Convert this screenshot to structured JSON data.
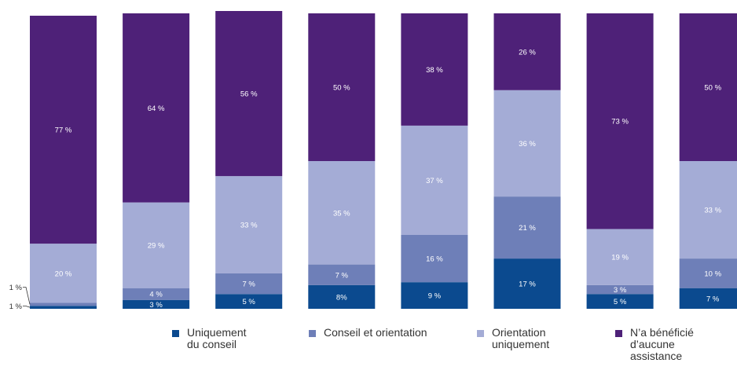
{
  "chart_data": {
    "type": "bar",
    "stacked": true,
    "normalized_to_percent": true,
    "grid": false,
    "legend_position": "bottom",
    "categories": [
      "",
      "",
      "",
      "",
      "",
      "",
      "",
      ""
    ],
    "series": [
      {
        "name": "Uniquement\ndu conseil",
        "color": "#0b4a8f",
        "values": [
          1,
          3,
          5,
          8,
          9,
          17,
          5,
          7
        ],
        "labels": [
          "1 %",
          "3 %",
          "5 %",
          "8%",
          "9 %",
          "17 %",
          "5 %",
          "7 %"
        ]
      },
      {
        "name": "Conseil et orientation",
        "color": "#6e7fb8",
        "values": [
          1,
          4,
          7,
          7,
          16,
          21,
          3,
          10
        ],
        "labels": [
          "1 %",
          "4 %",
          "7 %",
          "7 %",
          "16 %",
          "21 %",
          "3 %",
          "10 %"
        ]
      },
      {
        "name": "Orientation\nuniquement",
        "color": "#a4acd6",
        "values": [
          20,
          29,
          33,
          35,
          37,
          36,
          19,
          33
        ],
        "labels": [
          "20 %",
          "29 %",
          "33 %",
          "35 %",
          "37 %",
          "36 %",
          "19 %",
          "33 %"
        ]
      },
      {
        "name": "N’a bénéficié\nd’aucune\nassistance",
        "color": "#4e2178",
        "values": [
          77,
          64,
          56,
          50,
          38,
          26,
          73,
          50
        ],
        "labels": [
          "77 %",
          "64 %",
          "56 %",
          "50 %",
          "38 %",
          "26 %",
          "73 %",
          "50 %"
        ]
      }
    ]
  }
}
